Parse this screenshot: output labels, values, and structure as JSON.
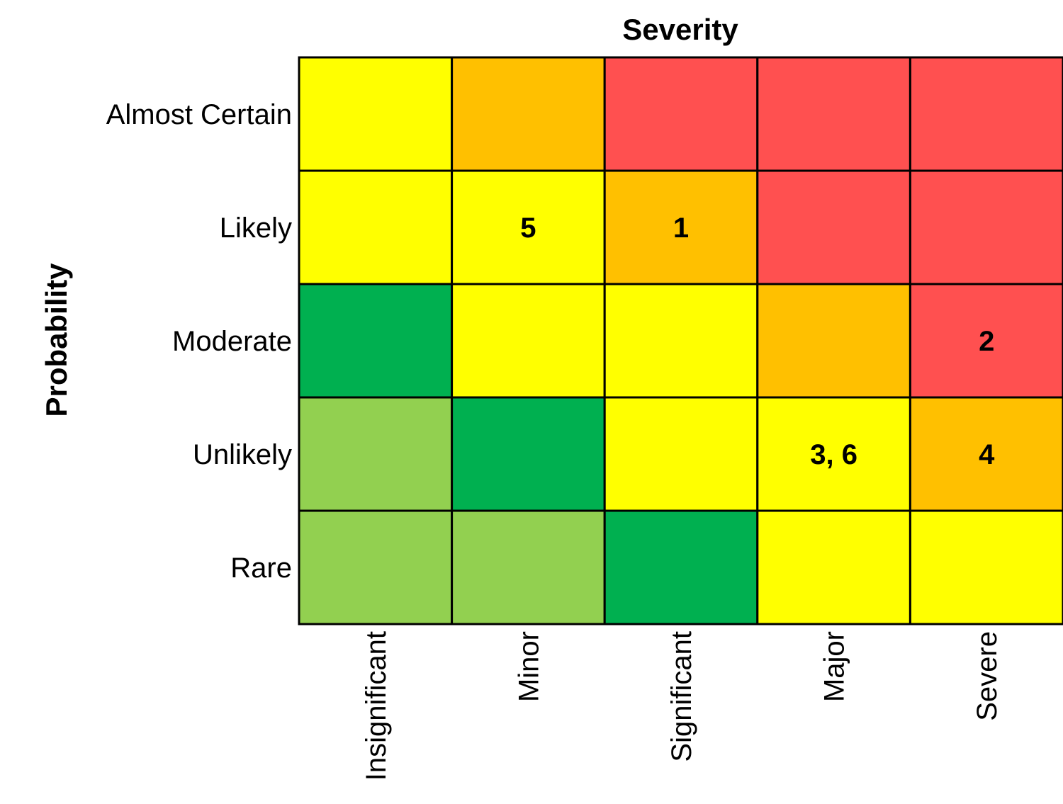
{
  "chart_data": {
    "type": "heatmap",
    "title": "Severity",
    "xlabel": "Severity",
    "ylabel": "Probability",
    "columns": [
      "Insignificant",
      "Minor",
      "Significant",
      "Major",
      "Severe"
    ],
    "rows": [
      "Almost Certain",
      "Likely",
      "Moderate",
      "Unlikely",
      "Rare"
    ],
    "palette": {
      "green_light": "#92D050",
      "green": "#00B050",
      "yellow": "#FFFF00",
      "orange": "#FFC000",
      "red": "#FF5050"
    },
    "cell_colors": [
      [
        "yellow",
        "orange",
        "red",
        "red",
        "red"
      ],
      [
        "yellow",
        "yellow",
        "orange",
        "red",
        "red"
      ],
      [
        "green",
        "yellow",
        "yellow",
        "orange",
        "red"
      ],
      [
        "green_light",
        "green",
        "yellow",
        "yellow",
        "orange"
      ],
      [
        "green_light",
        "green_light",
        "green",
        "yellow",
        "yellow"
      ]
    ],
    "cell_labels": [
      [
        "",
        "",
        "",
        "",
        ""
      ],
      [
        "",
        "5",
        "1",
        "",
        ""
      ],
      [
        "",
        "",
        "",
        "",
        "2"
      ],
      [
        "",
        "",
        "",
        "3, 6",
        "4"
      ],
      [
        "",
        "",
        "",
        "",
        ""
      ]
    ]
  }
}
